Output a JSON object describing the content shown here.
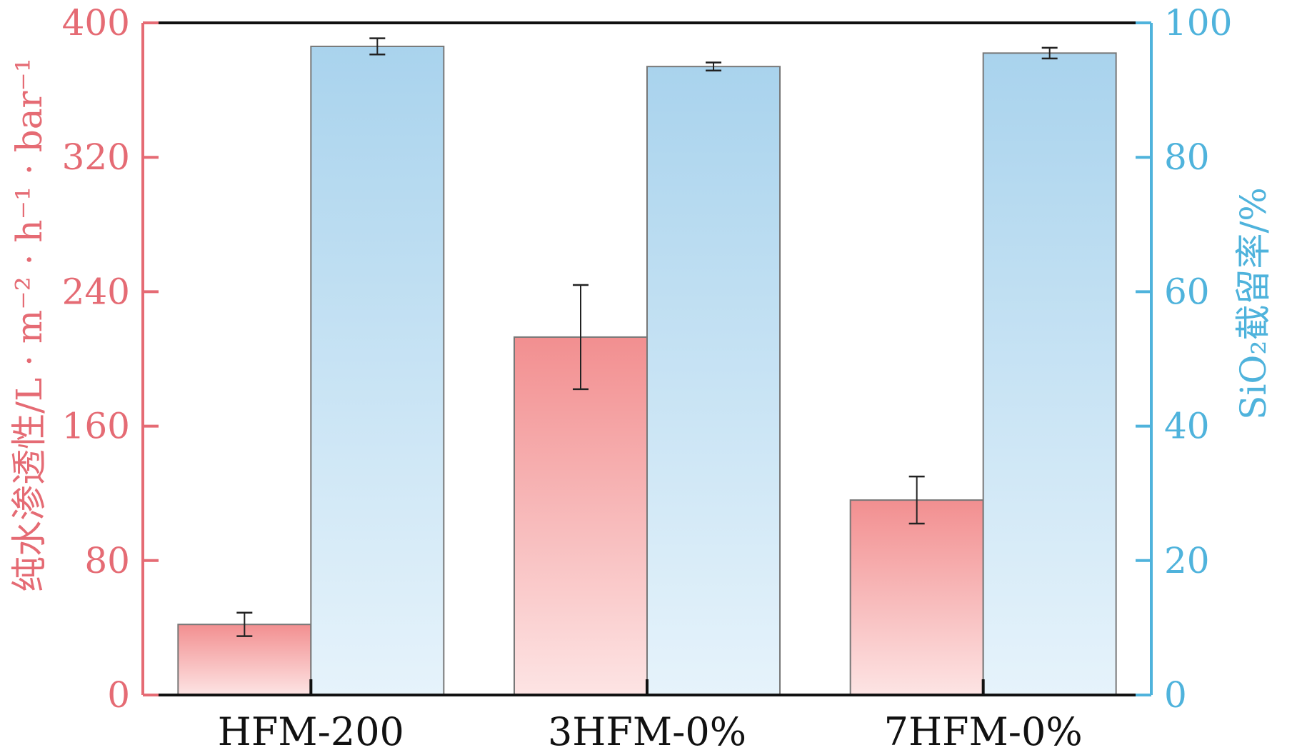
{
  "chart_data": {
    "type": "bar",
    "categories": [
      "HFM-200",
      "3HFM-0%",
      "7HFM-0%"
    ],
    "series": [
      {
        "axis": "left",
        "color": "#f08c8c",
        "values": [
          42,
          213,
          116
        ],
        "error": [
          7,
          31,
          14
        ]
      },
      {
        "axis": "right",
        "color": "#aad3ec",
        "values": [
          96.5,
          93.5,
          95.5
        ],
        "error": [
          1.2,
          0.6,
          0.8
        ]
      }
    ],
    "ylabel": "纯水渗透性/L · m⁻² · h⁻¹ · bar⁻¹",
    "ylim": [
      0,
      400
    ],
    "yticks": [
      0,
      80,
      160,
      240,
      320,
      400
    ],
    "y2label": "SiO₂截留率/%",
    "y2lim": [
      0,
      100
    ],
    "y2ticks": [
      0,
      20,
      40,
      60,
      80,
      100
    ],
    "left_axis_color": "#e56b74",
    "right_axis_color": "#4fb3dc",
    "grid": false
  }
}
